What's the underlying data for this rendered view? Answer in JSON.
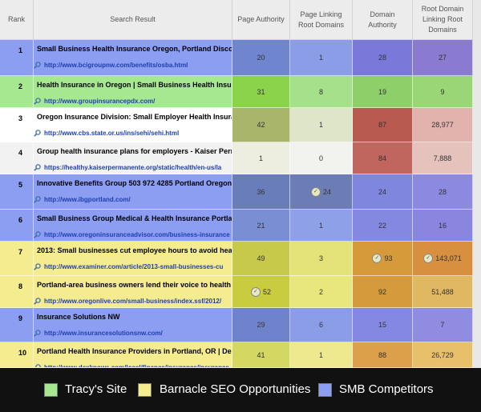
{
  "table": {
    "headers": [
      "Rank",
      "Search Result",
      "Page Authority",
      "Page Linking Root Domains",
      "Domain Authority",
      "Root Domain Linking Root Domains"
    ],
    "rows": [
      {
        "rank": "1",
        "title": "Small Business Health Insurance Oregon, Portland Discou",
        "url": "http://www.bcigroupnw.com/benefits/osba.html",
        "pa": "20",
        "plrd": "1",
        "da": "28",
        "rdlrd": "27"
      },
      {
        "rank": "2",
        "title": "Health Insurance in Oregon | Small Business Health Insura",
        "url": "http://www.groupinsurancepdx.com/",
        "pa": "31",
        "plrd": "8",
        "da": "19",
        "rdlrd": "9"
      },
      {
        "rank": "3",
        "title": "Oregon Insurance Division: Small Employer Health Insuran",
        "url": "http://www.cbs.state.or.us/ins/sehi/sehi.html",
        "pa": "42",
        "plrd": "1",
        "da": "87",
        "rdlrd": "28,977"
      },
      {
        "rank": "4",
        "title": "Group health insurance plans for employers - Kaiser Perma",
        "url": "https://healthy.kaiserpermanente.org/static/health/en-us/la",
        "pa": "1",
        "plrd": "0",
        "da": "84",
        "rdlrd": "7,888"
      },
      {
        "rank": "5",
        "title": "Innovative Benefits Group 503 972 4285 Portland Oregon e",
        "url": "http://www.ibgportland.com/",
        "pa": "36",
        "plrd": "24",
        "da": "24",
        "rdlrd": "28"
      },
      {
        "rank": "6",
        "title": "Small Business Group Medical & Health Insurance Portland",
        "url": "http://www.oregoninsuranceadvisor.com/business-insurance",
        "pa": "21",
        "plrd": "1",
        "da": "22",
        "rdlrd": "16"
      },
      {
        "rank": "7",
        "title": "2013: Small businesses cut employee hours to avoid health",
        "url": "http://www.examiner.com/article/2013-small-businesses-cu",
        "pa": "49",
        "plrd": "3",
        "da": "93",
        "rdlrd": "143,071"
      },
      {
        "rank": "8",
        "title": "Portland-area business owners lend their voice to health in",
        "url": "http://www.oregonlive.com/small-business/index.ssf/2012/",
        "pa": "52",
        "plrd": "2",
        "da": "92",
        "rdlrd": "51,488"
      },
      {
        "rank": "9",
        "title": "Insurance Solutions NW",
        "url": "http://www.insurancesolutionsnw.com/",
        "pa": "29",
        "plrd": "6",
        "da": "15",
        "rdlrd": "7"
      },
      {
        "rank": "10",
        "title": "Portland Health Insurance Providers in Portland, OR | DexK",
        "url": "http://www.dexknows.com/local/finance/insurance/insurance",
        "pa": "41",
        "plrd": "1",
        "da": "88",
        "rdlrd": "26,729"
      }
    ]
  },
  "legend": {
    "items": [
      "Tracy's Site",
      "Barnacle SEO Opportunities",
      "SMB Competitors"
    ]
  }
}
